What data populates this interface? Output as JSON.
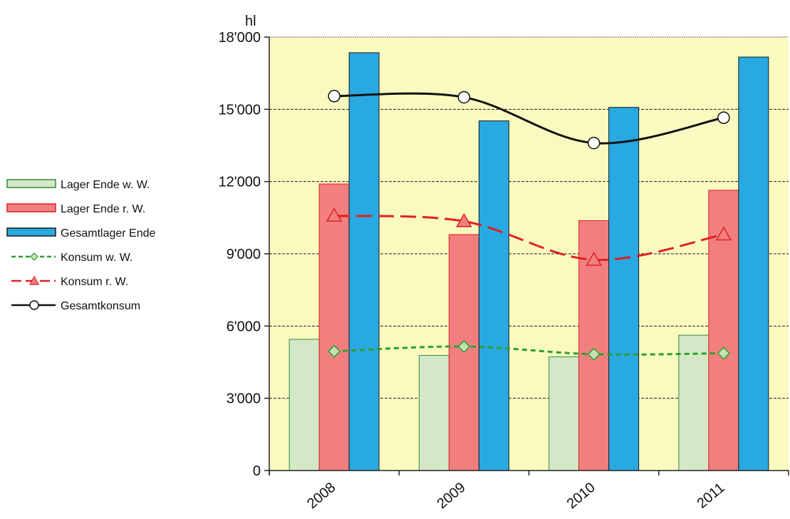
{
  "chart_data": {
    "type": "bar",
    "ylabel": "hl",
    "categories": [
      "2008",
      "2009",
      "2010",
      "2011"
    ],
    "ylim": [
      0,
      18000
    ],
    "yticks": [
      0,
      3000,
      6000,
      9000,
      12000,
      15000,
      18000
    ],
    "ytick_labels": [
      "0",
      "3'000",
      "6'000",
      "9'000",
      "12'000",
      "15'000",
      "18'000"
    ],
    "grid": true,
    "legend_position": "left",
    "background_color": "#fafac0",
    "bar_series": [
      {
        "name": "Lager Ende w. W.",
        "values": [
          5450,
          4780,
          4720,
          5620
        ],
        "color": "#d4e8c8",
        "stroke": "#2e8b3c"
      },
      {
        "name": "Lager Ende r. W.",
        "values": [
          11900,
          9800,
          10380,
          11640
        ],
        "color": "#f27f7f",
        "stroke": "#e02020"
      },
      {
        "name": "Gesamtlager Ende",
        "values": [
          17350,
          14520,
          15080,
          17170
        ],
        "color": "#29a9e1",
        "stroke": "#1a1a1a"
      }
    ],
    "line_series": [
      {
        "name": "Konsum w. W.",
        "values": [
          4950,
          5150,
          4830,
          4870
        ],
        "color": "#2ca02c",
        "marker": "diamond",
        "dash": "dotted"
      },
      {
        "name": "Konsum r. W.",
        "values": [
          10580,
          10350,
          8750,
          9800
        ],
        "color": "#e02020",
        "marker": "triangle",
        "dash": "dashed"
      },
      {
        "name": "Gesamtkonsum",
        "values": [
          15550,
          15500,
          13600,
          14650
        ],
        "color": "#111111",
        "marker": "circle",
        "dash": "solid"
      }
    ]
  }
}
